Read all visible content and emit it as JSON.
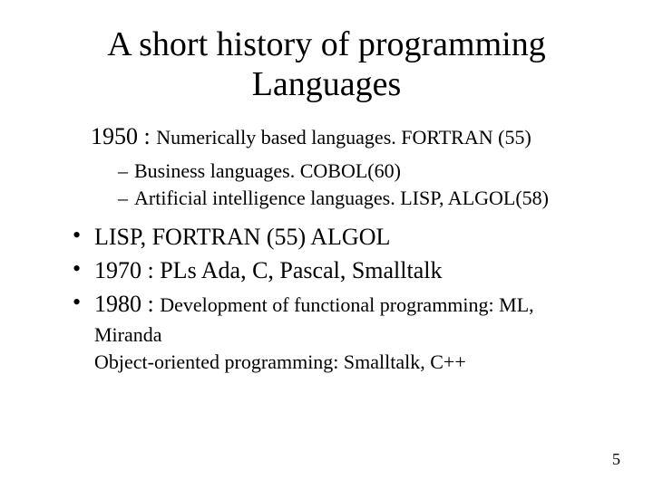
{
  "title": "A short history of programming Languages",
  "line1950": {
    "year": "1950 : ",
    "rest": "Numerically based languages. FORTRAN (55)"
  },
  "subItems": [
    "Business languages. COBOL(60)",
    "Artificial intelligence languages. LISP, ALGOL(58)"
  ],
  "bullets": {
    "b1": "LISP, FORTRAN (55) ALGOL",
    "b2": "1970 : PLs Ada, C, Pascal, Smalltalk",
    "b3_year": "1980 : ",
    "b3_rest": "Development of functional programming: ML, ",
    "b3_cont1": "Miranda",
    "b3_cont2": " Object-oriented programming: Smalltalk, C++"
  },
  "pageNumber": "5",
  "colors": {
    "background": "#ffffff",
    "text": "#000000"
  },
  "typography": {
    "title_fontsize": 38,
    "big_fontsize": 26,
    "body_fontsize": 22,
    "page_fontsize": 18,
    "font_family": "Times New Roman"
  }
}
